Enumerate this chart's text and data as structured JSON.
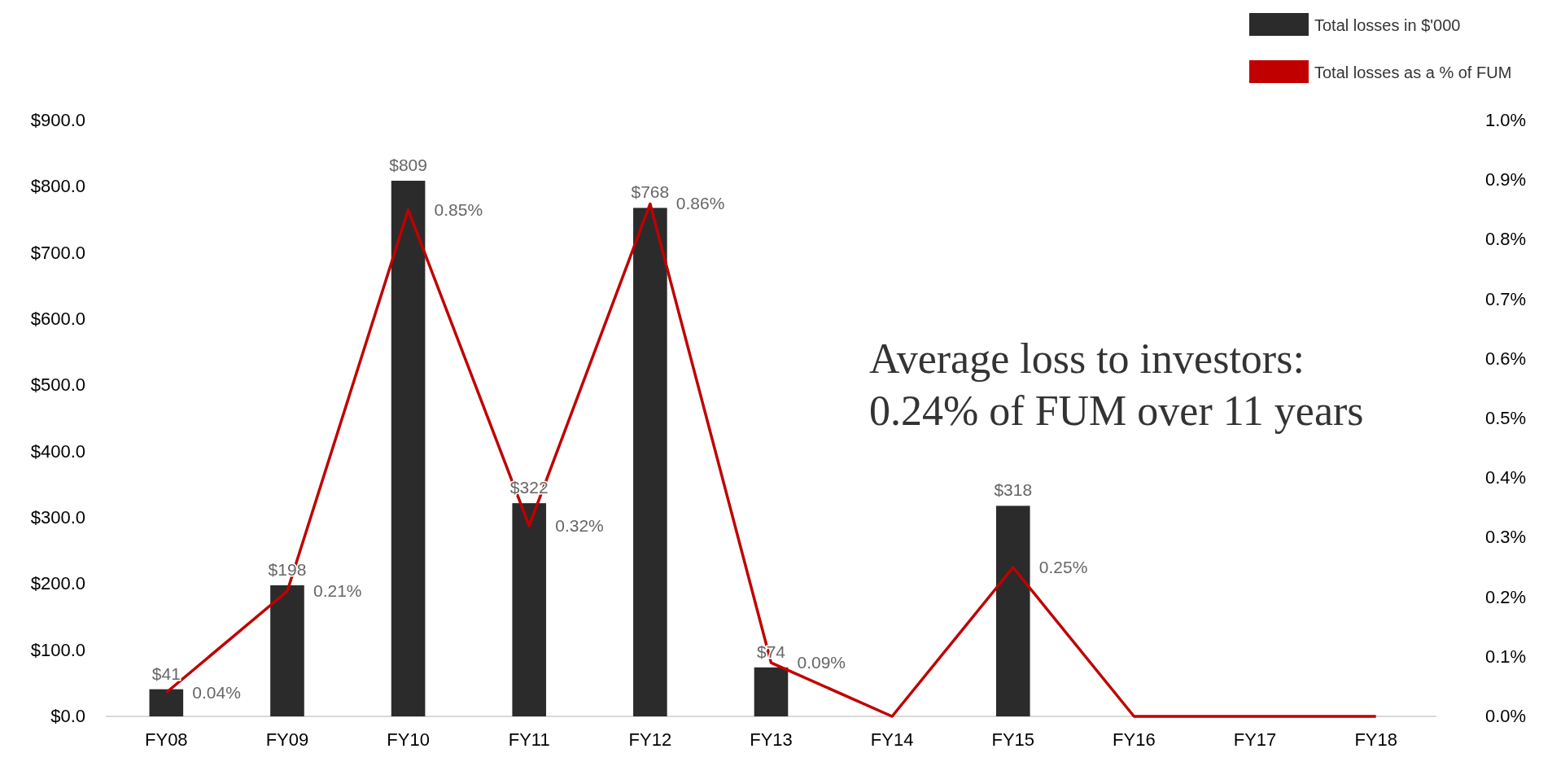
{
  "chart_data": {
    "type": "bar",
    "categories": [
      "FY08",
      "FY09",
      "FY10",
      "FY11",
      "FY12",
      "FY13",
      "FY14",
      "FY15",
      "FY16",
      "FY17",
      "FY18"
    ],
    "series": [
      {
        "name": "Total losses in $'000",
        "color": "#2b2b2b",
        "values": [
          41,
          198,
          809,
          322,
          768,
          74,
          0,
          318,
          0,
          0,
          0
        ],
        "value_labels": [
          "$41",
          "$198",
          "$809",
          "$322",
          "$768",
          "$74",
          null,
          "$318",
          null,
          null,
          null
        ]
      },
      {
        "name": "Total losses as a % of FUM",
        "type": "line",
        "axis": "y2",
        "color": "#c00000",
        "values": [
          0.04,
          0.21,
          0.85,
          0.32,
          0.86,
          0.09,
          0,
          0.25,
          0,
          0,
          0
        ],
        "value_labels": [
          "0.04%",
          "0.21%",
          "0.85%",
          "0.32%",
          "0.86%",
          "0.09%",
          null,
          "0.25%",
          null,
          null,
          null
        ]
      }
    ],
    "ylim": [
      0,
      900
    ],
    "yticks": [
      {
        "value": 0,
        "label": "$0.0"
      },
      {
        "value": 100,
        "label": "$100.0"
      },
      {
        "value": 200,
        "label": "$200.0"
      },
      {
        "value": 300,
        "label": "$300.0"
      },
      {
        "value": 400,
        "label": "$400.0"
      },
      {
        "value": 500,
        "label": "$500.0"
      },
      {
        "value": 600,
        "label": "$600.0"
      },
      {
        "value": 700,
        "label": "$700.0"
      },
      {
        "value": 800,
        "label": "$800.0"
      },
      {
        "value": 900,
        "label": "$900.0"
      }
    ],
    "y2lim": [
      0,
      1
    ],
    "y2ticks": [
      {
        "value": 0,
        "label": "0.0%"
      },
      {
        "value": 0.1,
        "label": "0.1%"
      },
      {
        "value": 0.2,
        "label": "0.2%"
      },
      {
        "value": 0.3,
        "label": "0.3%"
      },
      {
        "value": 0.4,
        "label": "0.4%"
      },
      {
        "value": 0.5,
        "label": "0.5%"
      },
      {
        "value": 0.6,
        "label": "0.6%"
      },
      {
        "value": 0.7,
        "label": "0.7%"
      },
      {
        "value": 0.8,
        "label": "0.8%"
      },
      {
        "value": 0.9,
        "label": "0.9%"
      },
      {
        "value": 1,
        "label": "1.0%"
      }
    ],
    "annotations": [
      "Average loss to investors:\n0.24% of FUM over 11 years"
    ],
    "legend": "top right",
    "grid": false
  }
}
